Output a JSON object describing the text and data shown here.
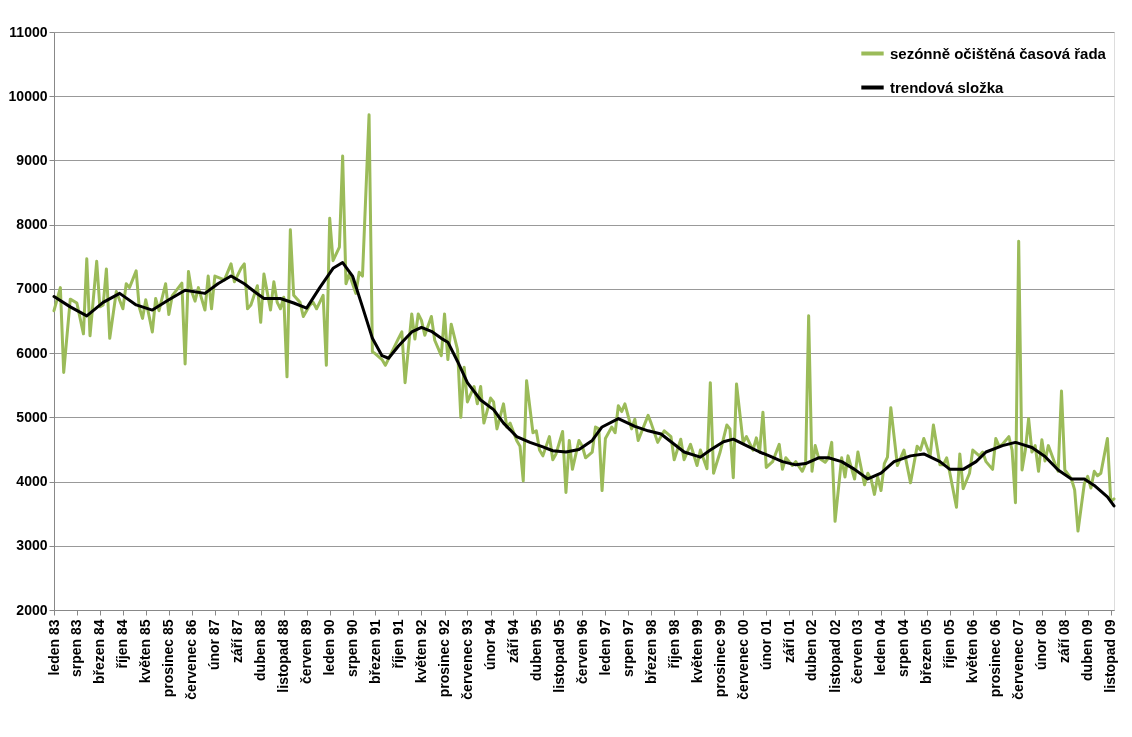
{
  "chart_data": {
    "type": "line",
    "grid": "y",
    "legend": "top right",
    "line_style": "solid",
    "xlim": [
      "1983-01",
      "2009-12"
    ],
    "ylim": [
      2000,
      11000
    ],
    "yticks": [
      2000,
      3000,
      4000,
      5000,
      6000,
      7000,
      8000,
      9000,
      10000,
      11000
    ],
    "xticks": [
      {
        "value": "1983-01",
        "label": "leden 83"
      },
      {
        "value": "1983-08",
        "label": "srpen 83"
      },
      {
        "value": "1984-03",
        "label": "březen 84"
      },
      {
        "value": "1984-10",
        "label": "říjen 84"
      },
      {
        "value": "1985-05",
        "label": "květen 85"
      },
      {
        "value": "1985-12",
        "label": "prosinec 85"
      },
      {
        "value": "1986-07",
        "label": "červenec 86"
      },
      {
        "value": "1987-02",
        "label": "únor 87"
      },
      {
        "value": "1987-09",
        "label": "září 87"
      },
      {
        "value": "1988-04",
        "label": "duben 88"
      },
      {
        "value": "1988-11",
        "label": "listopad 88"
      },
      {
        "value": "1989-06",
        "label": "červen 89"
      },
      {
        "value": "1990-01",
        "label": "leden 90"
      },
      {
        "value": "1990-08",
        "label": "srpen 90"
      },
      {
        "value": "1991-03",
        "label": "březen 91"
      },
      {
        "value": "1991-10",
        "label": "říjen 91"
      },
      {
        "value": "1992-05",
        "label": "květen 92"
      },
      {
        "value": "1992-12",
        "label": "prosinec 92"
      },
      {
        "value": "1993-07",
        "label": "červenec 93"
      },
      {
        "value": "1994-02",
        "label": "únor 94"
      },
      {
        "value": "1994-09",
        "label": "září 94"
      },
      {
        "value": "1995-04",
        "label": "duben 95"
      },
      {
        "value": "1995-11",
        "label": "listopad 95"
      },
      {
        "value": "1996-06",
        "label": "červen 96"
      },
      {
        "value": "1997-01",
        "label": "leden 97"
      },
      {
        "value": "1997-08",
        "label": "srpen 97"
      },
      {
        "value": "1998-03",
        "label": "březen 98"
      },
      {
        "value": "1998-10",
        "label": "říjen 98"
      },
      {
        "value": "1999-05",
        "label": "květen 99"
      },
      {
        "value": "1999-12",
        "label": "prosinec 99"
      },
      {
        "value": "2000-07",
        "label": "červenec 00"
      },
      {
        "value": "2001-02",
        "label": "únor 01"
      },
      {
        "value": "2001-09",
        "label": "září 01"
      },
      {
        "value": "2002-04",
        "label": "duben 02"
      },
      {
        "value": "2002-11",
        "label": "listopad 02"
      },
      {
        "value": "2003-06",
        "label": "červen 03"
      },
      {
        "value": "2004-01",
        "label": "leden 04"
      },
      {
        "value": "2004-08",
        "label": "srpen 04"
      },
      {
        "value": "2005-03",
        "label": "březen 05"
      },
      {
        "value": "2005-10",
        "label": "říjen 05"
      },
      {
        "value": "2006-05",
        "label": "květen 06"
      },
      {
        "value": "2006-12",
        "label": "prosinec 06"
      },
      {
        "value": "2007-07",
        "label": "červenec 07"
      },
      {
        "value": "2008-02",
        "label": "únor 08"
      },
      {
        "value": "2008-09",
        "label": "září 08"
      },
      {
        "value": "2009-04",
        "label": "duben 09"
      },
      {
        "value": "2009-11",
        "label": "listopad 09"
      }
    ],
    "series": [
      {
        "name": "sezónně očištěná časová řada",
        "type": "line",
        "color": "#9bbb59",
        "x": [
          "1983-01",
          "1983-03",
          "1983-04",
          "1983-06",
          "1983-08",
          "1983-10",
          "1983-11",
          "1983-12",
          "1984-02",
          "1984-03",
          "1984-04",
          "1984-05",
          "1984-06",
          "1984-08",
          "1984-10",
          "1984-11",
          "1984-12",
          "1985-02",
          "1985-03",
          "1985-04",
          "1985-05",
          "1985-07",
          "1985-08",
          "1985-09",
          "1985-11",
          "1985-12",
          "1986-01",
          "1986-04",
          "1986-05",
          "1986-06",
          "1986-07",
          "1986-08",
          "1986-09",
          "1986-11",
          "1986-12",
          "1987-01",
          "1987-02",
          "1987-05",
          "1987-07",
          "1987-08",
          "1987-10",
          "1987-11",
          "1987-12",
          "1988-01",
          "1988-03",
          "1988-04",
          "1988-05",
          "1988-07",
          "1988-08",
          "1988-09",
          "1988-10",
          "1988-11",
          "1988-12",
          "1989-01",
          "1989-02",
          "1989-04",
          "1989-05",
          "1989-07",
          "1989-08",
          "1989-09",
          "1989-11",
          "1989-12",
          "1990-01",
          "1990-02",
          "1990-04",
          "1990-05",
          "1990-06",
          "1990-07",
          "1990-09",
          "1990-10",
          "1990-11",
          "1991-01",
          "1991-02",
          "1991-03",
          "1991-05",
          "1991-06",
          "1991-08",
          "1991-10",
          "1991-11",
          "1991-12",
          "1992-02",
          "1992-03",
          "1992-04",
          "1992-05",
          "1992-06",
          "1992-08",
          "1992-09",
          "1992-11",
          "1992-12",
          "1993-01",
          "1993-02",
          "1993-04",
          "1993-05",
          "1993-06",
          "1993-07",
          "1993-09",
          "1993-10",
          "1993-11",
          "1993-12",
          "1994-02",
          "1994-03",
          "1994-04",
          "1994-06",
          "1994-07",
          "1994-08",
          "1994-10",
          "1994-11",
          "1994-12",
          "1995-01",
          "1995-03",
          "1995-04",
          "1995-05",
          "1995-06",
          "1995-08",
          "1995-09",
          "1995-10",
          "1995-12",
          "1996-01",
          "1996-02",
          "1996-03",
          "1996-05",
          "1996-06",
          "1996-07",
          "1996-09",
          "1996-10",
          "1996-11",
          "1996-12",
          "1997-01",
          "1997-03",
          "1997-04",
          "1997-05",
          "1997-06",
          "1997-07",
          "1997-09",
          "1997-10",
          "1997-11",
          "1998-02",
          "1998-03",
          "1998-05",
          "1998-07",
          "1998-09",
          "1998-10",
          "1998-12",
          "1999-01",
          "1999-03",
          "1999-05",
          "1999-06",
          "1999-08",
          "1999-09",
          "1999-10",
          "1999-12",
          "2000-02",
          "2000-03",
          "2000-04",
          "2000-05",
          "2000-07",
          "2000-08",
          "2000-10",
          "2000-11",
          "2000-12",
          "2001-01",
          "2001-02",
          "2001-04",
          "2001-06",
          "2001-07",
          "2001-08",
          "2001-10",
          "2001-11",
          "2002-01",
          "2002-02",
          "2002-03",
          "2002-04",
          "2002-05",
          "2002-06",
          "2002-08",
          "2002-09",
          "2002-10",
          "2002-11",
          "2003-01",
          "2003-02",
          "2003-03",
          "2003-05",
          "2003-06",
          "2003-08",
          "2003-09",
          "2003-10",
          "2003-11",
          "2003-12",
          "2004-01",
          "2004-02",
          "2004-03",
          "2004-04",
          "2004-06",
          "2004-08",
          "2004-10",
          "2004-12",
          "2005-01",
          "2005-02",
          "2005-04",
          "2005-05",
          "2005-07",
          "2005-08",
          "2005-09",
          "2005-10",
          "2005-12",
          "2006-01",
          "2006-02",
          "2006-04",
          "2006-05",
          "2006-07",
          "2006-08",
          "2006-09",
          "2006-11",
          "2006-12",
          "2007-01",
          "2007-02",
          "2007-04",
          "2007-05",
          "2007-06",
          "2007-07",
          "2007-08",
          "2007-09",
          "2007-10",
          "2007-11",
          "2007-12",
          "2008-01",
          "2008-02",
          "2008-03",
          "2008-04",
          "2008-06",
          "2008-07",
          "2008-08",
          "2008-09",
          "2008-11",
          "2008-12",
          "2009-01",
          "2009-03",
          "2009-04",
          "2009-05",
          "2009-06",
          "2009-07",
          "2009-08",
          "2009-10",
          "2009-11",
          "2009-12"
        ],
        "values": [
          6660,
          7020,
          5700,
          6840,
          6780,
          6300,
          7470,
          6270,
          7430,
          6720,
          6750,
          7310,
          6230,
          6960,
          6690,
          7080,
          7020,
          7280,
          6720,
          6540,
          6830,
          6330,
          6850,
          6660,
          7080,
          6600,
          6890,
          7090,
          5830,
          7270,
          6960,
          6810,
          7020,
          6670,
          7200,
          6690,
          7200,
          7140,
          7390,
          7110,
          7320,
          7390,
          6690,
          6750,
          7050,
          6480,
          7230,
          6670,
          7110,
          6790,
          6690,
          6870,
          5630,
          7920,
          6900,
          6790,
          6570,
          6750,
          6790,
          6690,
          6900,
          5810,
          8100,
          7440,
          7650,
          9070,
          7080,
          7230,
          6930,
          7260,
          7200,
          9710,
          6020,
          5990,
          5900,
          5810,
          6020,
          6230,
          6330,
          5540,
          6610,
          6220,
          6610,
          6510,
          6280,
          6570,
          6200,
          5960,
          6610,
          5900,
          6450,
          6050,
          5000,
          5780,
          5240,
          5480,
          5210,
          5480,
          4910,
          5300,
          5240,
          4820,
          5210,
          4850,
          4910,
          4640,
          4550,
          4010,
          5570,
          4760,
          4790,
          4490,
          4400,
          4700,
          4340,
          4430,
          4780,
          3830,
          4640,
          4190,
          4640,
          4550,
          4370,
          4460,
          4850,
          4820,
          3860,
          4670,
          4850,
          4760,
          5180,
          5090,
          5210,
          4820,
          4970,
          4640,
          5030,
          4910,
          4610,
          4790,
          4700,
          4340,
          4660,
          4340,
          4580,
          4250,
          4490,
          4200,
          5540,
          4130,
          4460,
          4880,
          4820,
          4060,
          5520,
          4610,
          4700,
          4490,
          4680,
          4460,
          5080,
          4220,
          4310,
          4580,
          4190,
          4370,
          4250,
          4310,
          4160,
          4280,
          6580,
          4160,
          4560,
          4370,
          4300,
          4370,
          4610,
          3380,
          4370,
          4070,
          4400,
          4040,
          4460,
          3950,
          4130,
          4040,
          3800,
          4070,
          3860,
          4280,
          4380,
          5150,
          4250,
          4490,
          3980,
          4550,
          4490,
          4670,
          4400,
          4880,
          4260,
          4260,
          4370,
          4130,
          3600,
          4430,
          3890,
          4130,
          4490,
          4400,
          4460,
          4310,
          4190,
          4670,
          4550,
          4580,
          4700,
          4490,
          3670,
          7740,
          4180,
          4490,
          4980,
          4460,
          4560,
          4160,
          4650,
          4320,
          4560,
          4280,
          4160,
          5410,
          4180,
          4040,
          3870,
          3230,
          3970,
          4080,
          3900,
          4160,
          4090,
          4130,
          4670,
          3690,
          3730
        ]
      },
      {
        "name": "trendová složka",
        "type": "line",
        "color": "#000000",
        "x": [
          "1983-01",
          "1983-06",
          "1983-11",
          "1984-04",
          "1984-09",
          "1985-02",
          "1985-07",
          "1985-12",
          "1986-05",
          "1986-11",
          "1987-03",
          "1987-07",
          "1987-11",
          "1988-02",
          "1988-05",
          "1988-10",
          "1989-02",
          "1989-06",
          "1989-10",
          "1990-02",
          "1990-05",
          "1990-08",
          "1990-11",
          "1991-02",
          "1991-05",
          "1991-07",
          "1991-10",
          "1992-02",
          "1992-05",
          "1992-08",
          "1992-11",
          "1993-01",
          "1993-04",
          "1993-07",
          "1993-11",
          "1994-03",
          "1994-06",
          "1994-10",
          "1995-02",
          "1995-06",
          "1995-09",
          "1996-01",
          "1996-05",
          "1996-09",
          "1996-12",
          "1997-05",
          "1997-10",
          "1998-02",
          "1998-06",
          "1998-10",
          "1999-01",
          "1999-06",
          "1999-09",
          "2000-01",
          "2000-04",
          "2000-08",
          "2000-12",
          "2001-03",
          "2001-07",
          "2001-11",
          "2002-02",
          "2002-06",
          "2002-09",
          "2003-01",
          "2003-05",
          "2003-09",
          "2004-01",
          "2004-05",
          "2004-10",
          "2005-02",
          "2005-07",
          "2005-10",
          "2006-02",
          "2006-06",
          "2006-09",
          "2007-02",
          "2007-06",
          "2007-11",
          "2008-03",
          "2008-07",
          "2008-11",
          "2009-03",
          "2009-06",
          "2009-10",
          "2009-12"
        ],
        "values": [
          6880,
          6720,
          6580,
          6790,
          6930,
          6750,
          6670,
          6830,
          6980,
          6930,
          7080,
          7200,
          7080,
          6960,
          6850,
          6850,
          6780,
          6700,
          7020,
          7320,
          7410,
          7200,
          6720,
          6230,
          5960,
          5920,
          6110,
          6330,
          6400,
          6340,
          6230,
          6170,
          5870,
          5540,
          5270,
          5120,
          4910,
          4700,
          4610,
          4540,
          4480,
          4460,
          4500,
          4640,
          4850,
          4980,
          4860,
          4790,
          4740,
          4580,
          4460,
          4380,
          4490,
          4620,
          4660,
          4560,
          4460,
          4400,
          4310,
          4260,
          4280,
          4370,
          4370,
          4310,
          4190,
          4040,
          4130,
          4310,
          4400,
          4430,
          4310,
          4190,
          4190,
          4310,
          4460,
          4560,
          4610,
          4530,
          4390,
          4180,
          4040,
          4040,
          3940,
          3760,
          3620
        ]
      }
    ]
  }
}
